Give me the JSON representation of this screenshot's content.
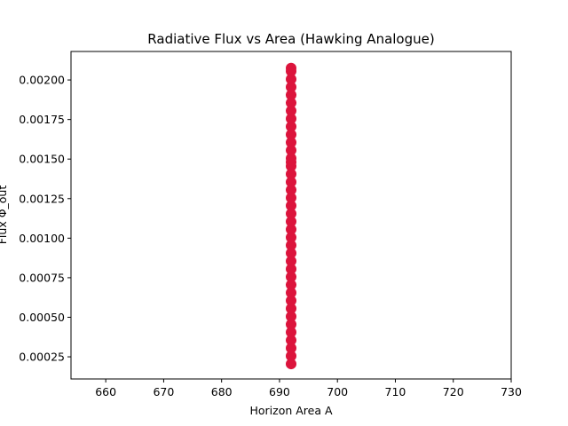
{
  "chart_data": {
    "type": "scatter",
    "title": "Radiative Flux vs Area (Hawking Analogue)",
    "xlabel": "Horizon Area A",
    "ylabel": "Flux Φ_out",
    "xlim": [
      654,
      730
    ],
    "ylim": [
      0.00011,
      0.00218
    ],
    "xticks": [
      660,
      670,
      680,
      690,
      700,
      710,
      720,
      730
    ],
    "yticks": [
      0.00025,
      0.0005,
      0.00075,
      0.001,
      0.00125,
      0.0015,
      0.00175,
      0.002
    ],
    "ytick_labels": [
      "0.00025",
      "0.00050",
      "0.00075",
      "0.00100",
      "0.00125",
      "0.00150",
      "0.00175",
      "0.00200"
    ],
    "grid": false,
    "legend": "none",
    "marker_color": "#dc143c",
    "series": [
      {
        "x": [
          692.0,
          692.0,
          692.0,
          692.0,
          692.0,
          692.0,
          692.0,
          692.0,
          692.0,
          692.0,
          692.0,
          692.0,
          692.0,
          692.0,
          692.0,
          692.0,
          692.0,
          692.0,
          692.0,
          692.0,
          692.0,
          692.0,
          692.0,
          692.0,
          692.0,
          692.0,
          692.0,
          692.0,
          692.0,
          692.0,
          692.0,
          692.0,
          692.0,
          692.0,
          692.0,
          692.0,
          692.0,
          692.0,
          692.0,
          692.0
        ],
        "y": [
          0.000205,
          0.000255,
          0.000305,
          0.000355,
          0.000405,
          0.000455,
          0.000505,
          0.000555,
          0.000605,
          0.000655,
          0.000705,
          0.000755,
          0.000805,
          0.000855,
          0.000905,
          0.000955,
          0.001005,
          0.001055,
          0.001105,
          0.001155,
          0.001205,
          0.001255,
          0.001305,
          0.001355,
          0.001405,
          0.001455,
          0.001505,
          0.001555,
          0.001605,
          0.001655,
          0.001705,
          0.001755,
          0.001805,
          0.001855,
          0.001905,
          0.001955,
          0.002005,
          0.002055,
          0.002075,
          0.00148
        ]
      }
    ]
  }
}
